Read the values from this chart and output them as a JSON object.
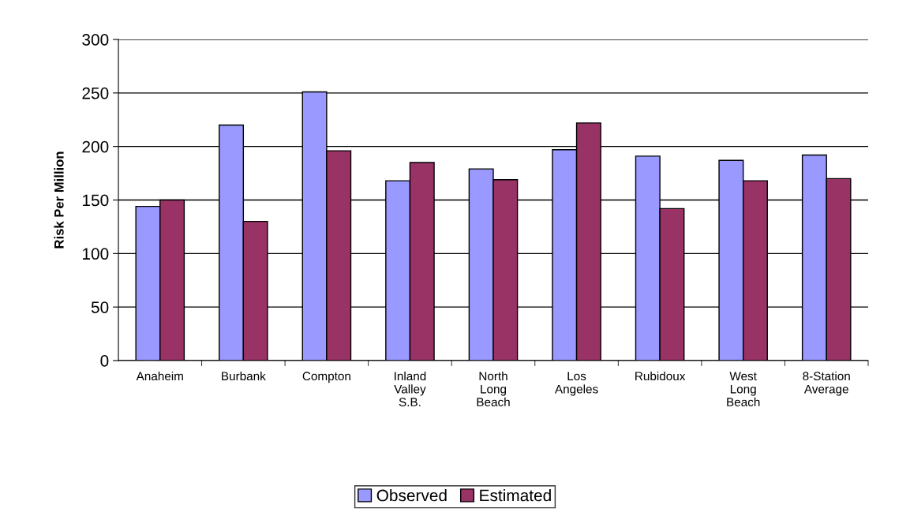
{
  "chart_data": {
    "type": "bar",
    "ylabel": "Risk Per Million",
    "categories": [
      "Anaheim",
      "Burbank",
      "Compton",
      "Inland\nValley\nS.B.",
      "North\nLong\nBeach",
      "Los\nAngeles",
      "Rubidoux",
      "West\nLong\nBeach",
      "8-Station\nAverage"
    ],
    "series": [
      {
        "name": "Observed",
        "color": "#9999ff",
        "values": [
          144,
          220,
          251,
          168,
          179,
          197,
          191,
          187,
          192
        ]
      },
      {
        "name": "Estimated",
        "color": "#993366",
        "values": [
          150,
          130,
          196,
          185,
          169,
          222,
          142,
          168,
          170
        ]
      }
    ],
    "ylim": [
      0,
      300
    ],
    "yticks": [
      0,
      50,
      100,
      150,
      200,
      250,
      300
    ],
    "grid": "y",
    "legend": "bottom"
  }
}
